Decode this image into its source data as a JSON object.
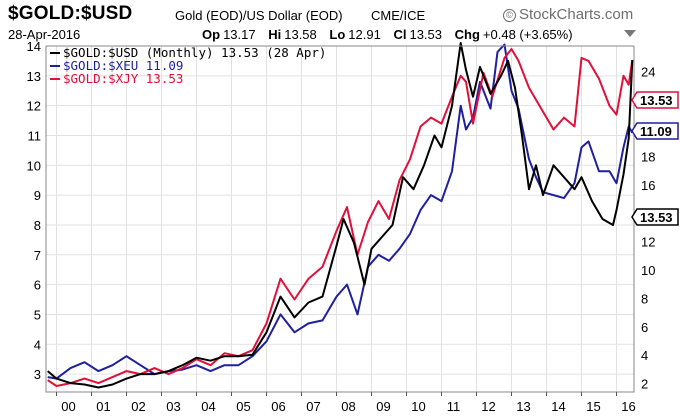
{
  "header": {
    "ticker": "$GOLD:$USD",
    "description": "Gold (EOD)/US Dollar (EOD)",
    "exchange": "CME/ICE",
    "logo_text": "StockCharts.com",
    "logo_icon": "copyright-icon",
    "date": "28-Apr-2016",
    "open_label": "Op",
    "open_value": "13.17",
    "high_label": "Hi",
    "high_value": "13.58",
    "low_label": "Lo",
    "low_value": "12.91",
    "close_label": "Cl",
    "close_value": "13.53",
    "change_label": "Chg",
    "change_value": "+0.48 (+3.65%)",
    "menu_icon": "dropdown-arrow-icon"
  },
  "colors": {
    "usd": "#000000",
    "xeu": "#1f1fa0",
    "xjy": "#e0103a",
    "grid": "#e2e2e2",
    "frame": "#888888"
  },
  "chart_data": {
    "type": "line",
    "legend": [
      {
        "text": "$GOLD:$USD (Monthly) 13.53 (28 Apr)",
        "color": "#000000"
      },
      {
        "text": "$GOLD:$XEU 11.09",
        "color": "#1f1fa0"
      },
      {
        "text": "$GOLD:$XJY 13.53",
        "color": "#e0103a"
      }
    ],
    "legend_position": "top-left",
    "x_ticks": [
      "00",
      "01",
      "02",
      "03",
      "04",
      "05",
      "06",
      "07",
      "08",
      "09",
      "10",
      "11",
      "12",
      "13",
      "14",
      "15",
      "16"
    ],
    "x_range": [
      1999.7,
      2016.5
    ],
    "left_axis": {
      "ticks": [
        "14",
        "13",
        "12",
        "11",
        "10",
        "9",
        "8",
        "7",
        "6",
        "5",
        "4",
        "3"
      ],
      "range": [
        2.4,
        14.0
      ]
    },
    "right_axis": {
      "ticks": [
        "24",
        "22",
        "20",
        "18",
        "16",
        "14",
        "12",
        "10",
        "8",
        "6",
        "4",
        "2"
      ],
      "range": [
        1.4,
        25.8
      ]
    },
    "right_labels": [
      {
        "text": "13.53",
        "value": 13.53,
        "series": "usd"
      },
      {
        "text": "11.09",
        "value": 11.09,
        "series": "xeu"
      },
      {
        "text": "13.53",
        "value": 13.53,
        "series": "xjy"
      }
    ],
    "grid": true,
    "series": [
      {
        "name": "$GOLD:$USD",
        "color": "#000000",
        "axis": "left",
        "points": [
          [
            1999.75,
            3.1
          ],
          [
            2000.0,
            2.85
          ],
          [
            2000.4,
            2.7
          ],
          [
            2000.8,
            2.65
          ],
          [
            2001.2,
            2.55
          ],
          [
            2001.6,
            2.65
          ],
          [
            2002.0,
            2.85
          ],
          [
            2002.4,
            3.0
          ],
          [
            2002.8,
            3.0
          ],
          [
            2003.2,
            3.1
          ],
          [
            2003.6,
            3.3
          ],
          [
            2004.0,
            3.55
          ],
          [
            2004.4,
            3.45
          ],
          [
            2004.8,
            3.6
          ],
          [
            2005.2,
            3.6
          ],
          [
            2005.6,
            3.65
          ],
          [
            2006.0,
            4.4
          ],
          [
            2006.4,
            5.6
          ],
          [
            2006.8,
            4.9
          ],
          [
            2007.2,
            5.4
          ],
          [
            2007.6,
            5.6
          ],
          [
            2008.0,
            7.3
          ],
          [
            2008.2,
            8.2
          ],
          [
            2008.5,
            7.4
          ],
          [
            2008.8,
            6.0
          ],
          [
            2009.0,
            7.2
          ],
          [
            2009.3,
            7.6
          ],
          [
            2009.6,
            8.0
          ],
          [
            2009.9,
            9.6
          ],
          [
            2010.2,
            9.2
          ],
          [
            2010.5,
            10.0
          ],
          [
            2010.8,
            11.0
          ],
          [
            2011.0,
            10.6
          ],
          [
            2011.3,
            12.0
          ],
          [
            2011.55,
            14.1
          ],
          [
            2011.7,
            13.2
          ],
          [
            2011.9,
            12.3
          ],
          [
            2012.1,
            13.3
          ],
          [
            2012.4,
            12.4
          ],
          [
            2012.7,
            13.0
          ],
          [
            2012.9,
            13.5
          ],
          [
            2013.1,
            12.6
          ],
          [
            2013.3,
            11.0
          ],
          [
            2013.5,
            9.2
          ],
          [
            2013.7,
            10.0
          ],
          [
            2013.9,
            9.0
          ],
          [
            2014.2,
            10.0
          ],
          [
            2014.5,
            9.6
          ],
          [
            2014.8,
            9.2
          ],
          [
            2015.0,
            9.6
          ],
          [
            2015.3,
            8.8
          ],
          [
            2015.6,
            8.2
          ],
          [
            2015.9,
            8.0
          ],
          [
            2016.0,
            8.5
          ],
          [
            2016.2,
            9.7
          ],
          [
            2016.35,
            10.9
          ],
          [
            2016.45,
            13.53
          ]
        ]
      },
      {
        "name": "$GOLD:$XEU",
        "color": "#1f1fa0",
        "axis": "left",
        "points": [
          [
            1999.75,
            2.9
          ],
          [
            2000.0,
            2.85
          ],
          [
            2000.4,
            3.2
          ],
          [
            2000.8,
            3.4
          ],
          [
            2001.2,
            3.1
          ],
          [
            2001.6,
            3.3
          ],
          [
            2002.0,
            3.6
          ],
          [
            2002.4,
            3.3
          ],
          [
            2002.8,
            3.0
          ],
          [
            2003.2,
            3.1
          ],
          [
            2003.6,
            3.15
          ],
          [
            2004.0,
            3.3
          ],
          [
            2004.4,
            3.1
          ],
          [
            2004.8,
            3.3
          ],
          [
            2005.2,
            3.3
          ],
          [
            2005.6,
            3.6
          ],
          [
            2006.0,
            4.1
          ],
          [
            2006.4,
            5.0
          ],
          [
            2006.8,
            4.4
          ],
          [
            2007.2,
            4.7
          ],
          [
            2007.6,
            4.8
          ],
          [
            2008.0,
            5.6
          ],
          [
            2008.3,
            6.0
          ],
          [
            2008.6,
            5.0
          ],
          [
            2008.9,
            6.6
          ],
          [
            2009.2,
            7.0
          ],
          [
            2009.5,
            6.8
          ],
          [
            2009.8,
            7.2
          ],
          [
            2010.1,
            7.7
          ],
          [
            2010.4,
            8.5
          ],
          [
            2010.7,
            9.0
          ],
          [
            2011.0,
            8.8
          ],
          [
            2011.3,
            9.8
          ],
          [
            2011.55,
            12.0
          ],
          [
            2011.7,
            11.2
          ],
          [
            2011.9,
            11.6
          ],
          [
            2012.1,
            12.8
          ],
          [
            2012.4,
            11.9
          ],
          [
            2012.6,
            13.8
          ],
          [
            2012.8,
            14.05
          ],
          [
            2013.0,
            12.5
          ],
          [
            2013.2,
            11.9
          ],
          [
            2013.5,
            10.2
          ],
          [
            2013.7,
            9.6
          ],
          [
            2013.9,
            9.1
          ],
          [
            2014.2,
            9.0
          ],
          [
            2014.5,
            8.9
          ],
          [
            2014.8,
            9.4
          ],
          [
            2015.0,
            10.6
          ],
          [
            2015.2,
            10.8
          ],
          [
            2015.5,
            9.8
          ],
          [
            2015.8,
            9.8
          ],
          [
            2016.0,
            9.4
          ],
          [
            2016.2,
            10.6
          ],
          [
            2016.35,
            11.3
          ],
          [
            2016.45,
            11.09
          ]
        ]
      },
      {
        "name": "$GOLD:$XJY",
        "color": "#e0103a",
        "axis": "left",
        "points": [
          [
            1999.75,
            2.8
          ],
          [
            2000.0,
            2.6
          ],
          [
            2000.4,
            2.7
          ],
          [
            2000.8,
            2.85
          ],
          [
            2001.2,
            2.7
          ],
          [
            2001.6,
            2.9
          ],
          [
            2002.0,
            3.1
          ],
          [
            2002.4,
            3.0
          ],
          [
            2002.8,
            3.2
          ],
          [
            2003.2,
            3.0
          ],
          [
            2003.6,
            3.2
          ],
          [
            2004.0,
            3.5
          ],
          [
            2004.4,
            3.3
          ],
          [
            2004.8,
            3.7
          ],
          [
            2005.2,
            3.6
          ],
          [
            2005.6,
            3.8
          ],
          [
            2006.0,
            4.7
          ],
          [
            2006.4,
            6.2
          ],
          [
            2006.8,
            5.5
          ],
          [
            2007.2,
            6.2
          ],
          [
            2007.6,
            6.6
          ],
          [
            2008.0,
            7.8
          ],
          [
            2008.3,
            8.6
          ],
          [
            2008.6,
            7.0
          ],
          [
            2008.9,
            8.1
          ],
          [
            2009.2,
            8.8
          ],
          [
            2009.5,
            8.2
          ],
          [
            2009.8,
            9.5
          ],
          [
            2010.1,
            10.2
          ],
          [
            2010.4,
            11.3
          ],
          [
            2010.7,
            11.6
          ],
          [
            2011.0,
            11.4
          ],
          [
            2011.3,
            12.3
          ],
          [
            2011.55,
            13.0
          ],
          [
            2011.7,
            12.8
          ],
          [
            2011.9,
            11.4
          ],
          [
            2012.2,
            13.1
          ],
          [
            2012.45,
            12.3
          ],
          [
            2012.8,
            13.6
          ],
          [
            2013.0,
            13.9
          ],
          [
            2013.2,
            13.5
          ],
          [
            2013.5,
            12.6
          ],
          [
            2013.8,
            12.0
          ],
          [
            2014.2,
            11.2
          ],
          [
            2014.5,
            11.6
          ],
          [
            2014.8,
            11.3
          ],
          [
            2015.0,
            13.6
          ],
          [
            2015.2,
            13.5
          ],
          [
            2015.5,
            12.9
          ],
          [
            2015.8,
            12.0
          ],
          [
            2016.0,
            11.7
          ],
          [
            2016.2,
            13.0
          ],
          [
            2016.35,
            12.7
          ],
          [
            2016.45,
            13.53
          ]
        ]
      }
    ]
  }
}
